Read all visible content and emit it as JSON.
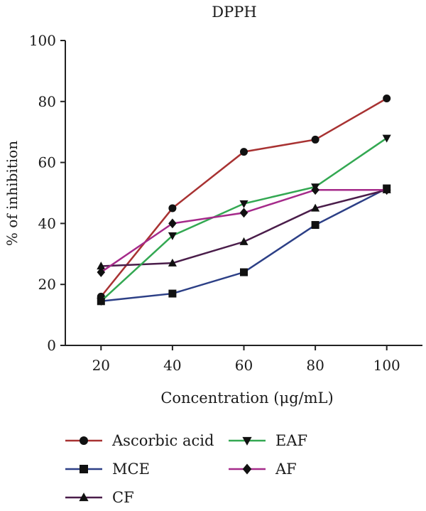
{
  "chart_data": {
    "type": "line",
    "title": "DPPH",
    "xlabel": "Concentration (μg/mL)",
    "ylabel": "% of inhibition",
    "x": [
      20,
      40,
      60,
      80,
      100
    ],
    "xlim": [
      10,
      110
    ],
    "ylim": [
      0,
      100
    ],
    "yticks": [
      0,
      20,
      40,
      60,
      80,
      100
    ],
    "grid": false,
    "legend_position": "bottom",
    "series": [
      {
        "name": "Ascorbic acid",
        "marker": "circle",
        "color": "#a83232",
        "values": [
          16,
          45,
          63.5,
          67.5,
          81
        ]
      },
      {
        "name": "MCE",
        "marker": "square",
        "color": "#2c3f86",
        "values": [
          14.5,
          17,
          24,
          39.5,
          51.5
        ]
      },
      {
        "name": "CF",
        "marker": "triangle-up",
        "color": "#4a1d4a",
        "values": [
          26,
          27,
          34,
          45,
          51
        ]
      },
      {
        "name": "EAF",
        "marker": "triangle-down",
        "color": "#33a852",
        "values": [
          14.5,
          36,
          46.5,
          52,
          68
        ]
      },
      {
        "name": "AF",
        "marker": "diamond",
        "color": "#a52a8a",
        "values": [
          24,
          40,
          43.5,
          51,
          51
        ]
      }
    ]
  }
}
